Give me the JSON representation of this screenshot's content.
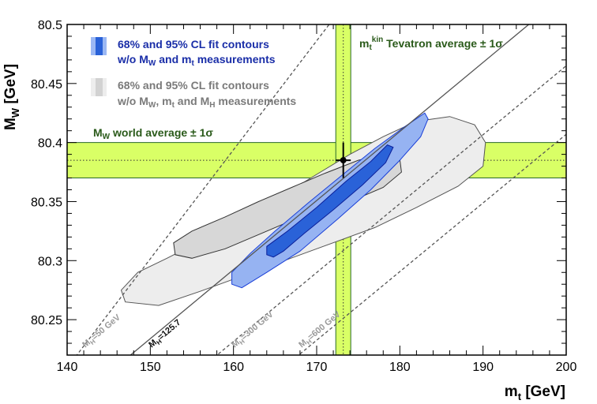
{
  "chart_data": {
    "type": "scatter",
    "xlabel": "m",
    "xlabel_sub": "t",
    "xlabel_unit": " [GeV]",
    "ylabel": "M",
    "ylabel_sub": "W",
    "ylabel_unit": " [GeV]",
    "xlim": [
      140,
      200
    ],
    "ylim": [
      80.22,
      80.5
    ],
    "x_ticks": [
      140,
      150,
      160,
      170,
      180,
      190,
      200
    ],
    "x_tick_labels": [
      "140",
      "150",
      "160",
      "170",
      "180",
      "190",
      "200"
    ],
    "y_ticks": [
      80.25,
      80.3,
      80.35,
      80.4,
      80.45,
      80.5
    ],
    "y_tick_labels": [
      "80.25",
      "80.3",
      "80.35",
      "80.4",
      "80.45",
      "80.5"
    ],
    "measurement_point": {
      "x": 173.2,
      "y": 80.385,
      "x_err": 0.9,
      "y_err": 0.015
    },
    "mw_band": {
      "center": 80.385,
      "sigma": 0.015,
      "label": "M",
      "label_sub": "W",
      "label_rest": " world average ± 1σ",
      "color": "#d9ff66"
    },
    "mt_band": {
      "center": 173.2,
      "sigma": 0.9,
      "label": "m",
      "label_sub": "t",
      "label_sup": "kin",
      "label_rest": " Tevatron average ± 1σ",
      "color": "#d9ff66"
    },
    "mh_lines": [
      {
        "label": "M_H=50 GeV",
        "text": "M",
        "sub": "H",
        "value": "=50 GeV",
        "solid": false,
        "x": [
          139,
          171.5
        ],
        "y": [
          80.2,
          80.5
        ]
      },
      {
        "label": "M_H=125.7",
        "text": "M",
        "sub": "H",
        "value": "=125.7",
        "solid": true,
        "x": [
          144.2,
          195.5
        ],
        "y": [
          80.2,
          80.5
        ]
      },
      {
        "label": "M_H=300 GeV",
        "text": "M",
        "sub": "H",
        "value": "=300 GeV",
        "solid": false,
        "x": [
          154.6,
          206
        ],
        "y": [
          80.2,
          80.5
        ]
      },
      {
        "label": "M_H=600 GeV",
        "text": "M",
        "sub": "H",
        "value": "=600 GeV",
        "solid": false,
        "x": [
          164.4,
          216
        ],
        "y": [
          80.2,
          80.5
        ]
      }
    ],
    "contours": [
      {
        "name": "grey-95",
        "color": "#ededed",
        "stroke": "#555555",
        "points": [
          [
            147,
            80.265
          ],
          [
            146.5,
            80.275
          ],
          [
            148.5,
            80.29
          ],
          [
            152,
            80.302
          ],
          [
            157,
            80.32
          ],
          [
            162,
            80.34
          ],
          [
            167,
            80.36
          ],
          [
            170,
            80.373
          ],
          [
            174,
            80.39
          ],
          [
            178,
            80.405
          ],
          [
            182,
            80.418
          ],
          [
            186,
            80.422
          ],
          [
            189,
            80.415
          ],
          [
            190.3,
            80.4
          ],
          [
            190,
            80.38
          ],
          [
            187,
            80.363
          ],
          [
            182,
            80.345
          ],
          [
            177,
            80.328
          ],
          [
            170,
            80.31
          ],
          [
            163,
            80.292
          ],
          [
            156,
            80.274
          ],
          [
            151,
            80.262
          ]
        ]
      },
      {
        "name": "grey-68",
        "color": "#d7d7d7",
        "stroke": "#333333",
        "points": [
          [
            153,
            80.305
          ],
          [
            152.8,
            80.315
          ],
          [
            155,
            80.325
          ],
          [
            159,
            80.337
          ],
          [
            163,
            80.35
          ],
          [
            167,
            80.362
          ],
          [
            171,
            80.374
          ],
          [
            175,
            80.385
          ],
          [
            178,
            80.39
          ],
          [
            180,
            80.386
          ],
          [
            180.2,
            80.375
          ],
          [
            178,
            80.362
          ],
          [
            174,
            80.35
          ],
          [
            169,
            80.34
          ],
          [
            164,
            80.325
          ],
          [
            159,
            80.31
          ],
          [
            155,
            80.302
          ]
        ]
      },
      {
        "name": "blue-95",
        "color": "#96b3f2",
        "stroke": "#1a3fd8",
        "points": [
          [
            159.8,
            80.28
          ],
          [
            159.8,
            80.29
          ],
          [
            162,
            80.306
          ],
          [
            165,
            80.325
          ],
          [
            169,
            80.349
          ],
          [
            173,
            80.372
          ],
          [
            177,
            80.395
          ],
          [
            180.5,
            80.413
          ],
          [
            183,
            80.425
          ],
          [
            183.4,
            80.42
          ],
          [
            182.5,
            80.405
          ],
          [
            180,
            80.385
          ],
          [
            176.5,
            80.36
          ],
          [
            172.5,
            80.335
          ],
          [
            168,
            80.308
          ],
          [
            164,
            80.29
          ],
          [
            161,
            80.277
          ]
        ]
      },
      {
        "name": "blue-68",
        "color": "#2a62d8",
        "stroke": "#0a1f9a",
        "points": [
          [
            164,
            80.305
          ],
          [
            164,
            80.312
          ],
          [
            166.5,
            80.325
          ],
          [
            170,
            80.345
          ],
          [
            173.5,
            80.367
          ],
          [
            176.5,
            80.384
          ],
          [
            178.5,
            80.398
          ],
          [
            179.2,
            80.396
          ],
          [
            178.3,
            80.383
          ],
          [
            175.5,
            80.364
          ],
          [
            172,
            80.343
          ],
          [
            168.5,
            80.323
          ],
          [
            166,
            80.308
          ],
          [
            164.8,
            80.303
          ]
        ]
      }
    ],
    "legend": [
      {
        "label_line1": "68% and 95% CL fit contours",
        "label_line2": "w/o M",
        "sub2a": "W",
        "mid2": " and m",
        "sub2b": "t",
        "end2": " measurements",
        "color": "#1a2ea8"
      },
      {
        "label_line1": "68% and 95% CL fit contours",
        "label_line2": "w/o M",
        "sub2a": "W",
        "mid2": ", m",
        "sub2b": "t",
        "end2": " and M",
        "sub2c": "H",
        "end2c": " measurements",
        "color": "#7a7a7a"
      }
    ]
  }
}
